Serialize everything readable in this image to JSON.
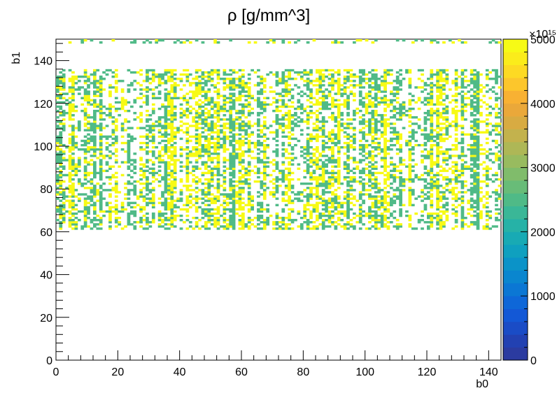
{
  "chart_data": {
    "type": "heatmap",
    "title": "ρ [g/mm^3]",
    "xlabel": "b0",
    "ylabel": "b1",
    "xlim": [
      0,
      144
    ],
    "ylim": [
      0,
      150
    ],
    "x_ticks": [
      "0",
      "20",
      "40",
      "60",
      "80",
      "100",
      "120",
      "140"
    ],
    "y_ticks": [
      "0",
      "20",
      "40",
      "60",
      "80",
      "100",
      "120",
      "140"
    ],
    "colorbar": {
      "range": [
        0,
        5000
      ],
      "ticks": [
        "0",
        "1000",
        "2000",
        "3000",
        "4000",
        "5000"
      ],
      "multiplier": "×10¹⁵",
      "colors": [
        "#2b3ba0",
        "#2241b2",
        "#1a4cc6",
        "#1358d6",
        "#0e67d8",
        "#0b77d4",
        "#0a86cf",
        "#0b93c8",
        "#0fa0bf",
        "#18aab4",
        "#26b2a7",
        "#3ab797",
        "#4fba87",
        "#68bc78",
        "#80bc6b",
        "#98bb5f",
        "#aeb756",
        "#c3b24d",
        "#d8ab42",
        "#eaa83a",
        "#f8b133",
        "#fcc62c",
        "#fdda23",
        "#fbec1b",
        "#f7fa15"
      ],
      "grid": false
    },
    "cells": {
      "x_range": [
        0,
        144
      ],
      "y_bands": [
        [
          61,
          136
        ],
        [
          148,
          150
        ]
      ],
      "values_seen": [
        2000,
        5000
      ],
      "colors_seen": [
        "#4fba87",
        "#f7fa15"
      ]
    }
  }
}
